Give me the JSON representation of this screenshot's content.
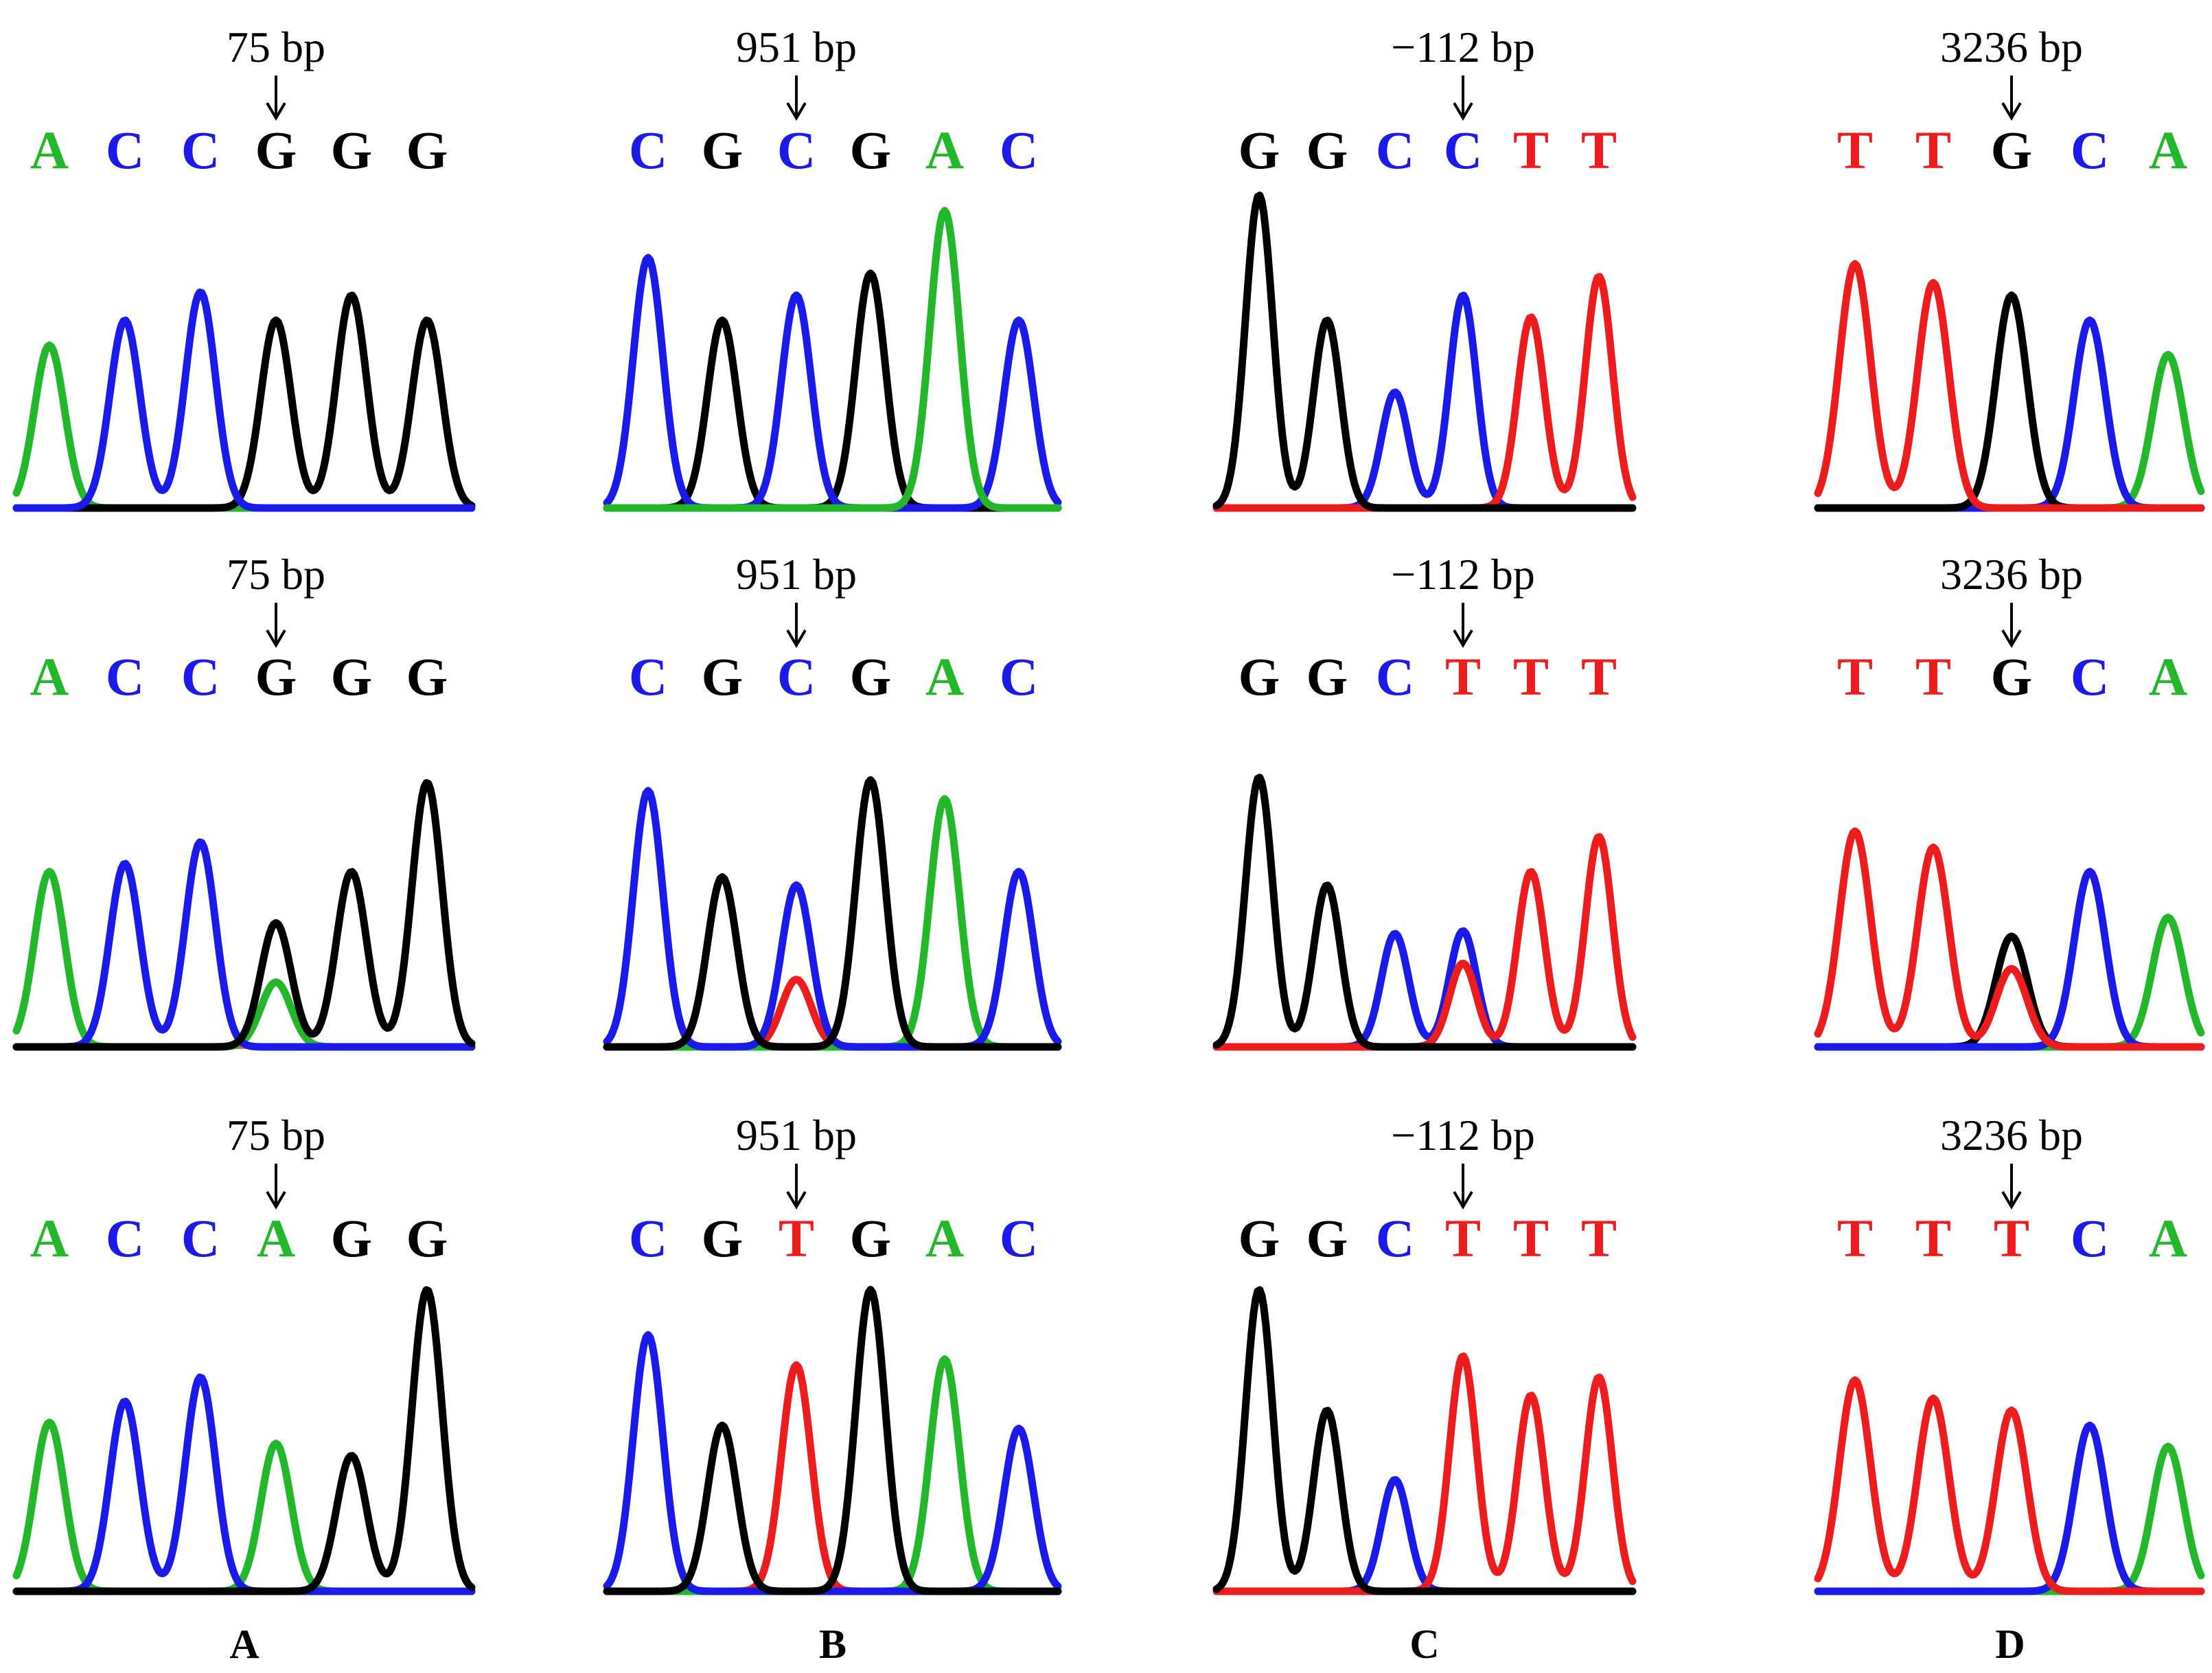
{
  "colors": {
    "A": "#22b82a",
    "C": "#1a1aeb",
    "G": "#000000",
    "T": "#ee1c1c"
  },
  "columns": [
    {
      "panel_label": "A",
      "rows": [
        {
          "position_label": "75 bp",
          "arrow_index": 3,
          "bases": [
            "A",
            "C",
            "C",
            "G",
            "G",
            "G"
          ],
          "peaks": [
            [
              {
                "b": "A",
                "h": 0.52
              }
            ],
            [
              {
                "b": "C",
                "h": 0.6
              }
            ],
            [
              {
                "b": "C",
                "h": 0.69
              }
            ],
            [
              {
                "b": "G",
                "h": 0.6
              }
            ],
            [
              {
                "b": "G",
                "h": 0.68
              }
            ],
            [
              {
                "b": "G",
                "h": 0.6
              }
            ]
          ]
        },
        {
          "position_label": "75 bp",
          "arrow_index": 3,
          "bases": [
            "A",
            "C",
            "C",
            "G",
            "G",
            "G"
          ],
          "peaks": [
            [
              {
                "b": "A",
                "h": 0.65
              }
            ],
            [
              {
                "b": "C",
                "h": 0.68
              }
            ],
            [
              {
                "b": "C",
                "h": 0.76
              }
            ],
            [
              {
                "b": "G",
                "h": 0.46
              },
              {
                "b": "A",
                "h": 0.24
              }
            ],
            [
              {
                "b": "G",
                "h": 0.65
              }
            ],
            [
              {
                "b": "G",
                "h": 0.98
              }
            ]
          ]
        },
        {
          "position_label": "75 bp",
          "arrow_index": 3,
          "bases": [
            "A",
            "C",
            "C",
            "A",
            "G",
            "G"
          ],
          "peaks": [
            [
              {
                "b": "A",
                "h": 0.56
              }
            ],
            [
              {
                "b": "C",
                "h": 0.63
              }
            ],
            [
              {
                "b": "C",
                "h": 0.71
              }
            ],
            [
              {
                "b": "A",
                "h": 0.49
              }
            ],
            [
              {
                "b": "G",
                "h": 0.45
              }
            ],
            [
              {
                "b": "G",
                "h": 1.0
              }
            ]
          ]
        }
      ]
    },
    {
      "panel_label": "B",
      "rows": [
        {
          "position_label": "951 bp",
          "arrow_index": 2,
          "bases": [
            "C",
            "G",
            "C",
            "G",
            "A",
            "C"
          ],
          "peaks": [
            [
              {
                "b": "C",
                "h": 0.8
              }
            ],
            [
              {
                "b": "G",
                "h": 0.6
              }
            ],
            [
              {
                "b": "C",
                "h": 0.68
              }
            ],
            [
              {
                "b": "G",
                "h": 0.75
              }
            ],
            [
              {
                "b": "A",
                "h": 0.95
              }
            ],
            [
              {
                "b": "C",
                "h": 0.6
              }
            ]
          ]
        },
        {
          "position_label": "951 bp",
          "arrow_index": 2,
          "bases": [
            "C",
            "G",
            "C",
            "G",
            "A",
            "C"
          ],
          "peaks": [
            [
              {
                "b": "C",
                "h": 0.95
              }
            ],
            [
              {
                "b": "G",
                "h": 0.63
              }
            ],
            [
              {
                "b": "C",
                "h": 0.6
              },
              {
                "b": "T",
                "h": 0.25
              }
            ],
            [
              {
                "b": "G",
                "h": 0.99
              }
            ],
            [
              {
                "b": "A",
                "h": 0.92
              }
            ],
            [
              {
                "b": "C",
                "h": 0.65
              }
            ]
          ]
        },
        {
          "position_label": "951 bp",
          "arrow_index": 2,
          "bases": [
            "C",
            "G",
            "T",
            "G",
            "A",
            "C"
          ],
          "peaks": [
            [
              {
                "b": "C",
                "h": 0.85
              }
            ],
            [
              {
                "b": "G",
                "h": 0.55
              }
            ],
            [
              {
                "b": "T",
                "h": 0.75
              }
            ],
            [
              {
                "b": "G",
                "h": 1.0
              }
            ],
            [
              {
                "b": "A",
                "h": 0.77
              }
            ],
            [
              {
                "b": "C",
                "h": 0.54
              }
            ]
          ]
        }
      ]
    },
    {
      "panel_label": "C",
      "rows": [
        {
          "position_label": "−112 bp",
          "arrow_index": 3,
          "bases": [
            "G",
            "G",
            "C",
            "C",
            "T",
            "T"
          ],
          "peaks": [
            [
              {
                "b": "G",
                "h": 1.0
              }
            ],
            [
              {
                "b": "G",
                "h": 0.6
              }
            ],
            [
              {
                "b": "C",
                "h": 0.37
              }
            ],
            [
              {
                "b": "C",
                "h": 0.68
              }
            ],
            [
              {
                "b": "T",
                "h": 0.61
              }
            ],
            [
              {
                "b": "T",
                "h": 0.74
              }
            ]
          ]
        },
        {
          "position_label": "−112 bp",
          "arrow_index": 3,
          "bases": [
            "G",
            "G",
            "C",
            "T",
            "T",
            "T"
          ],
          "peaks": [
            [
              {
                "b": "G",
                "h": 1.0
              }
            ],
            [
              {
                "b": "G",
                "h": 0.6
              }
            ],
            [
              {
                "b": "C",
                "h": 0.42
              }
            ],
            [
              {
                "b": "C",
                "h": 0.43
              },
              {
                "b": "T",
                "h": 0.31
              }
            ],
            [
              {
                "b": "T",
                "h": 0.65
              }
            ],
            [
              {
                "b": "T",
                "h": 0.78
              }
            ]
          ]
        },
        {
          "position_label": "−112 bp",
          "arrow_index": 3,
          "bases": [
            "G",
            "G",
            "C",
            "T",
            "T",
            "T"
          ],
          "peaks": [
            [
              {
                "b": "G",
                "h": 1.0
              }
            ],
            [
              {
                "b": "G",
                "h": 0.6
              }
            ],
            [
              {
                "b": "C",
                "h": 0.37
              }
            ],
            [
              {
                "b": "T",
                "h": 0.78
              }
            ],
            [
              {
                "b": "T",
                "h": 0.65
              }
            ],
            [
              {
                "b": "T",
                "h": 0.71
              }
            ]
          ]
        }
      ]
    },
    {
      "panel_label": "D",
      "rows": [
        {
          "position_label": "3236 bp",
          "arrow_index": 2,
          "bases": [
            "T",
            "T",
            "G",
            "C",
            "A"
          ],
          "peaks": [
            [
              {
                "b": "T",
                "h": 0.78
              }
            ],
            [
              {
                "b": "T",
                "h": 0.72
              }
            ],
            [
              {
                "b": "G",
                "h": 0.68
              }
            ],
            [
              {
                "b": "C",
                "h": 0.6
              }
            ],
            [
              {
                "b": "A",
                "h": 0.49
              }
            ]
          ]
        },
        {
          "position_label": "3236 bp",
          "arrow_index": 2,
          "bases": [
            "T",
            "T",
            "G",
            "C",
            "A"
          ],
          "peaks": [
            [
              {
                "b": "T",
                "h": 0.8
              }
            ],
            [
              {
                "b": "T",
                "h": 0.74
              }
            ],
            [
              {
                "b": "G",
                "h": 0.41
              },
              {
                "b": "T",
                "h": 0.29
              }
            ],
            [
              {
                "b": "C",
                "h": 0.65
              }
            ],
            [
              {
                "b": "A",
                "h": 0.48
              }
            ]
          ]
        },
        {
          "position_label": "3236 bp",
          "arrow_index": 2,
          "bases": [
            "T",
            "T",
            "T",
            "C",
            "A"
          ],
          "peaks": [
            [
              {
                "b": "T",
                "h": 0.7
              }
            ],
            [
              {
                "b": "T",
                "h": 0.64
              }
            ],
            [
              {
                "b": "T",
                "h": 0.6
              }
            ],
            [
              {
                "b": "C",
                "h": 0.55
              }
            ],
            [
              {
                "b": "A",
                "h": 0.48
              }
            ]
          ]
        }
      ]
    }
  ]
}
